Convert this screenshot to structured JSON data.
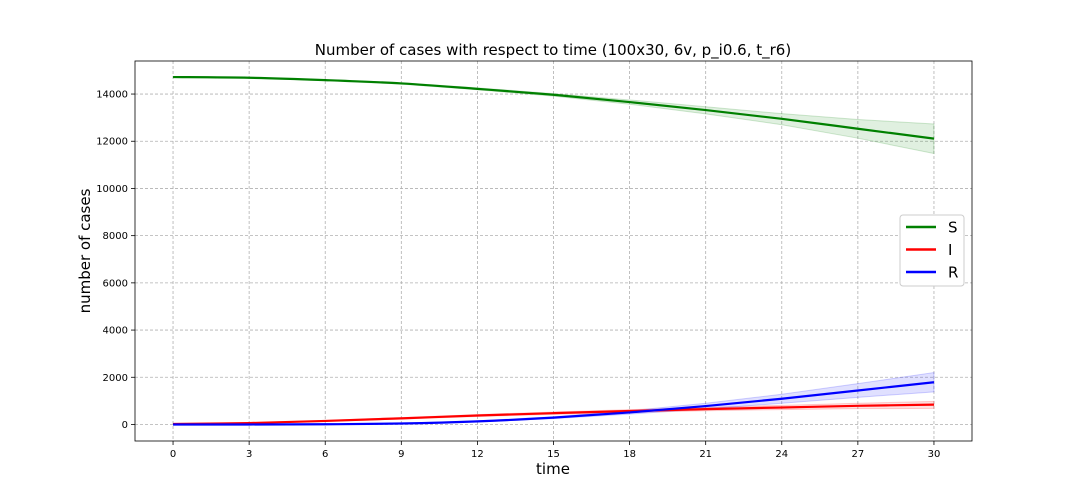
{
  "chart_data": {
    "type": "line",
    "title": "Number of cases with respect to time (100x30, 6v, p_i0.6, t_r6)",
    "xlabel": "time",
    "ylabel": "number of cases",
    "xlim": [
      -1.5,
      31.5
    ],
    "ylim": [
      -700,
      15400
    ],
    "xticks": [
      0,
      3,
      6,
      9,
      12,
      15,
      18,
      21,
      24,
      27,
      30
    ],
    "yticks": [
      0,
      2000,
      4000,
      6000,
      8000,
      10000,
      12000,
      14000
    ],
    "grid": true,
    "legend_position": "center-right",
    "x": [
      0,
      3,
      6,
      9,
      12,
      15,
      18,
      21,
      24,
      27,
      30
    ],
    "series": [
      {
        "name": "S",
        "color": "#008000",
        "values": [
          14720,
          14690,
          14590,
          14450,
          14220,
          13970,
          13660,
          13320,
          12950,
          12530,
          12110
        ],
        "lower": [
          14720,
          14680,
          14570,
          14420,
          14180,
          13910,
          13570,
          13160,
          12700,
          12130,
          11480
        ],
        "upper": [
          14720,
          14700,
          14610,
          14480,
          14260,
          14020,
          13750,
          13460,
          13170,
          12920,
          12730
        ]
      },
      {
        "name": "I",
        "color": "#ff0000",
        "values": [
          20,
          60,
          150,
          260,
          380,
          480,
          570,
          650,
          720,
          790,
          840
        ],
        "lower": [
          20,
          50,
          130,
          230,
          340,
          430,
          510,
          580,
          630,
          670,
          680
        ],
        "upper": [
          20,
          70,
          170,
          290,
          420,
          530,
          630,
          720,
          810,
          900,
          980
        ]
      },
      {
        "name": "R",
        "color": "#0000ff",
        "values": [
          0,
          0,
          10,
          40,
          130,
          290,
          510,
          780,
          1090,
          1440,
          1790
        ],
        "lower": [
          0,
          0,
          5,
          30,
          110,
          250,
          440,
          660,
          900,
          1150,
          1380
        ],
        "upper": [
          0,
          0,
          15,
          50,
          150,
          330,
          580,
          900,
          1280,
          1730,
          2200
        ]
      }
    ]
  }
}
